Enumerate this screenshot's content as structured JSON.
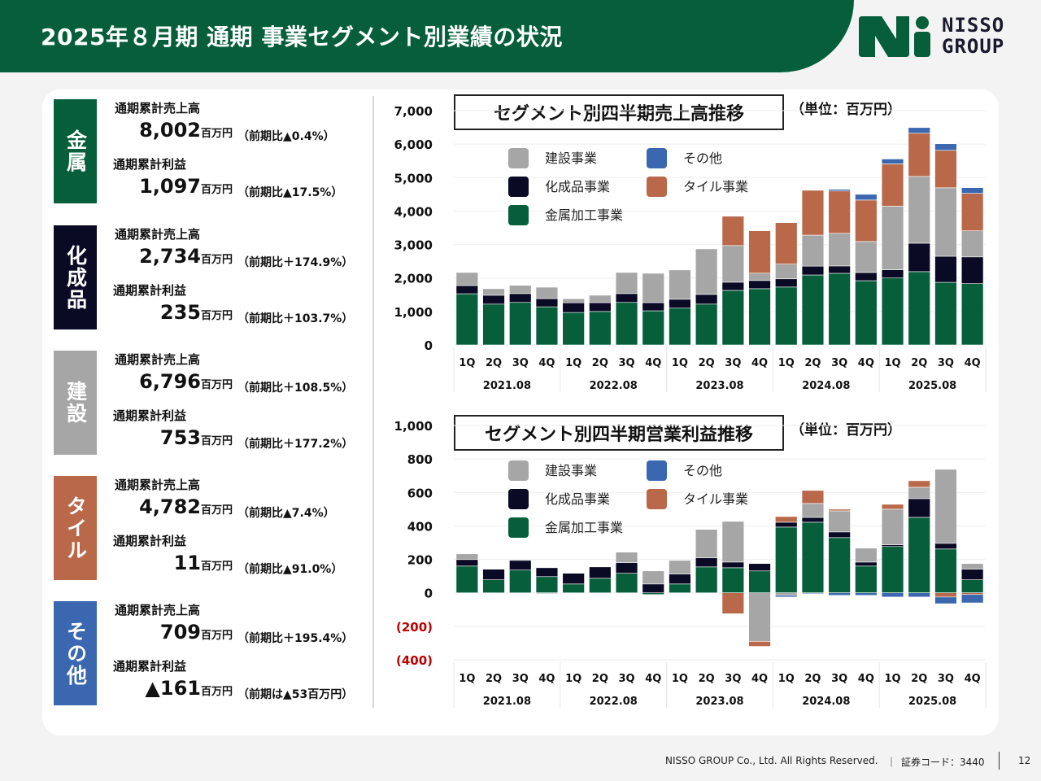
{
  "header": {
    "title": "2025年８月期 通期 事業セグメント別業績の状況"
  },
  "logo": {
    "line1": "NISSO",
    "line2": "GROUP"
  },
  "colors": {
    "brand": "#065f3a",
    "metal": "#065f3a",
    "chemical": "#0a0a24",
    "construction": "#a6a6a6",
    "tile": "#b9694a",
    "other": "#3a67b0",
    "negative_label": "#c00000"
  },
  "segments": [
    {
      "name": "金属",
      "color": "#065f3a",
      "sales_label": "通期累計売上高",
      "sales_value": "8,002",
      "sales_unit": "百万円",
      "sales_change": "（前期比▲0.4%）",
      "profit_label": "通期累計利益",
      "profit_value": "1,097",
      "profit_unit": "百万円",
      "profit_change": "（前期比▲17.5%）"
    },
    {
      "name": "化成品",
      "color": "#0a0a24",
      "sales_label": "通期累計売上高",
      "sales_value": "2,734",
      "sales_unit": "百万円",
      "sales_change": "（前期比＋174.9%）",
      "profit_label": "通期累計利益",
      "profit_value": "235",
      "profit_unit": "百万円",
      "profit_change": "（前期比＋103.7%）"
    },
    {
      "name": "建設",
      "color": "#a6a6a6",
      "sales_label": "通期累計売上高",
      "sales_value": "6,796",
      "sales_unit": "百万円",
      "sales_change": "（前期比＋108.5%）",
      "profit_label": "通期累計利益",
      "profit_value": "753",
      "profit_unit": "百万円",
      "profit_change": "（前期比＋177.2%）"
    },
    {
      "name": "タイル",
      "color": "#b9694a",
      "sales_label": "通期累計売上高",
      "sales_value": "4,782",
      "sales_unit": "百万円",
      "sales_change": "（前期比▲7.4%）",
      "profit_label": "通期累計利益",
      "profit_value": "11",
      "profit_unit": "百万円",
      "profit_change": "（前期比▲91.0%）"
    },
    {
      "name": "その他",
      "color": "#3a67b0",
      "sales_label": "通期累計売上高",
      "sales_value": "709",
      "sales_unit": "百万円",
      "sales_change": "（前期比＋195.4%）",
      "profit_label": "通期累計利益",
      "profit_value": "▲161",
      "profit_unit": "百万円",
      "profit_change": "（前期は▲53百万円）"
    }
  ],
  "chart_data": [
    {
      "type": "bar",
      "stacked": true,
      "title": "セグメント別四半期売上高推移",
      "unit_label": "（単位：百万円）",
      "xlabel": "",
      "ylabel": "",
      "ylim": [
        0,
        7000
      ],
      "yticks": [
        0,
        1000,
        2000,
        3000,
        4000,
        5000,
        6000,
        7000
      ],
      "ytick_labels": [
        "0",
        "1,000",
        "2,000",
        "3,000",
        "4,000",
        "5,000",
        "6,000",
        "7,000"
      ],
      "grid": true,
      "legend_position": "top-left",
      "categories": [
        "1Q",
        "2Q",
        "3Q",
        "4Q",
        "1Q",
        "2Q",
        "3Q",
        "4Q",
        "1Q",
        "2Q",
        "3Q",
        "4Q",
        "1Q",
        "2Q",
        "3Q",
        "4Q",
        "1Q",
        "2Q",
        "3Q",
        "4Q"
      ],
      "groups": [
        "2021.08",
        "2022.08",
        "2023.08",
        "2024.08",
        "2025.08"
      ],
      "legend_order": [
        "建設事業",
        "化成品事業",
        "金属加工事業",
        "その他",
        "タイル事業"
      ],
      "series": [
        {
          "name": "金属加工事業",
          "color": "#065f3a",
          "values": [
            1530,
            1220,
            1270,
            1140,
            970,
            1000,
            1270,
            1020,
            1100,
            1220,
            1630,
            1680,
            1730,
            2090,
            2140,
            1920,
            2000,
            2190,
            1870,
            1830
          ]
        },
        {
          "name": "化成品事業",
          "color": "#0a0a24",
          "values": [
            245,
            265,
            265,
            245,
            290,
            265,
            265,
            245,
            265,
            290,
            245,
            245,
            245,
            265,
            220,
            245,
            245,
            850,
            780,
            800
          ]
        },
        {
          "name": "建設事業",
          "color": "#a6a6a6",
          "values": [
            390,
            195,
            245,
            340,
            120,
            220,
            630,
            875,
            875,
            1360,
            1095,
            220,
            440,
            925,
            975,
            925,
            1900,
            1995,
            2045,
            780
          ]
        },
        {
          "name": "タイル事業",
          "color": "#b9694a",
          "values": [
            0,
            0,
            0,
            0,
            0,
            0,
            0,
            0,
            0,
            0,
            875,
            1265,
            1240,
            1340,
            1265,
            1240,
            1265,
            1290,
            1120,
            1120
          ]
        },
        {
          "name": "その他",
          "color": "#3a67b0",
          "values": [
            0,
            0,
            0,
            0,
            0,
            0,
            0,
            0,
            0,
            0,
            0,
            0,
            0,
            0,
            50,
            170,
            145,
            170,
            195,
            170
          ]
        }
      ]
    },
    {
      "type": "bar",
      "stacked": true,
      "title": "セグメント別四半期営業利益推移",
      "unit_label": "（単位：百万円）",
      "xlabel": "",
      "ylabel": "",
      "ylim": [
        -400,
        1000
      ],
      "yticks": [
        -400,
        -200,
        0,
        200,
        400,
        600,
        800,
        1000
      ],
      "ytick_labels": [
        "(400)",
        "(200)",
        "0",
        "200",
        "400",
        "600",
        "800",
        "1,000"
      ],
      "grid": true,
      "legend_position": "top-left",
      "categories": [
        "1Q",
        "2Q",
        "3Q",
        "4Q",
        "1Q",
        "2Q",
        "3Q",
        "4Q",
        "1Q",
        "2Q",
        "3Q",
        "4Q",
        "1Q",
        "2Q",
        "3Q",
        "4Q",
        "1Q",
        "2Q",
        "3Q",
        "4Q"
      ],
      "groups": [
        "2021.08",
        "2022.08",
        "2023.08",
        "2024.08",
        "2025.08"
      ],
      "legend_order": [
        "建設事業",
        "化成品事業",
        "金属加工事業",
        "その他",
        "タイル事業"
      ],
      "series": [
        {
          "name": "金属加工事業",
          "color": "#065f3a",
          "values": [
            160,
            78,
            136,
            97,
            53,
            87,
            117,
            -10,
            53,
            155,
            150,
            131,
            393,
            422,
            330,
            160,
            277,
            451,
            262,
            78
          ]
        },
        {
          "name": "化成品事業",
          "color": "#0a0a24",
          "values": [
            39,
            63,
            58,
            53,
            64,
            68,
            63,
            53,
            59,
            54,
            34,
            44,
            29,
            29,
            34,
            24,
            10,
            112,
            34,
            63
          ]
        },
        {
          "name": "建設事業",
          "color": "#a6a6a6",
          "values": [
            34,
            0,
            5,
            -5,
            0,
            0,
            63,
            78,
            82,
            170,
            243,
            -290,
            -15,
            83,
            126,
            83,
            213,
            68,
            442,
            34
          ]
        },
        {
          "name": "タイル事業",
          "color": "#b9694a",
          "values": [
            0,
            0,
            0,
            0,
            0,
            0,
            0,
            0,
            0,
            0,
            -125,
            -30,
            34,
            78,
            10,
            0,
            29,
            39,
            -25,
            -10
          ]
        },
        {
          "name": "その他",
          "color": "#3a67b0",
          "values": [
            0,
            0,
            0,
            0,
            0,
            0,
            0,
            0,
            0,
            0,
            0,
            0,
            -10,
            -5,
            -15,
            -15,
            -25,
            -25,
            -40,
            -50
          ]
        }
      ]
    }
  ],
  "footer": {
    "copyright": "NISSO GROUP Co., Ltd. All Rights Reserved.",
    "separator": "｜",
    "code": "証券コード：3440",
    "page": "12"
  }
}
